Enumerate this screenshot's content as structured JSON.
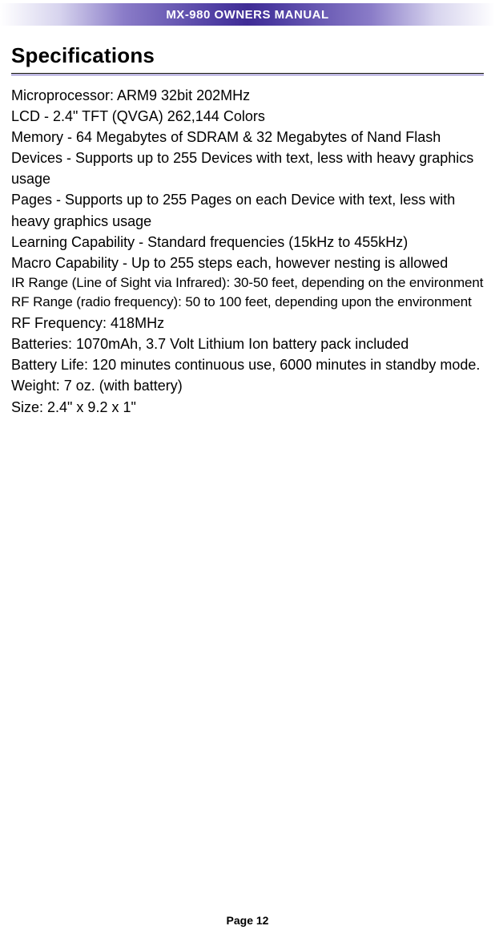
{
  "header": {
    "product": "MX-980",
    "tail": " OWNERS MANUAL"
  },
  "section_title": "Specifications",
  "specs": [
    {
      "text": "Microprocessor: ARM9 32bit 202MHz"
    },
    {
      "text": "LCD - 2.4\" TFT (QVGA) 262,144 Colors"
    },
    {
      "text": "Memory - 64 Megabytes of SDRAM & 32 Megabytes of Nand Flash"
    },
    {
      "text": "Devices - Supports up to 255 Devices with text, less with heavy graphics usage"
    },
    {
      "text": "Pages - Supports up to 255 Pages on each Device with text, less with heavy graphics usage"
    },
    {
      "text": "Learning Capability - Standard frequencies (15kHz to 455kHz)"
    },
    {
      "text": "Macro Capability - Up to 255 steps each, however nesting is allowed"
    },
    {
      "text": "IR Range (Line of Sight via Infrared): 30-50 feet, depending on the environment",
      "tight": true
    },
    {
      "text": "RF Range (radio frequency): 50 to 100 feet, depending upon the environment",
      "tight": true
    },
    {
      "text": "RF Frequency: 418MHz"
    },
    {
      "text": "Batteries: 1070mAh, 3.7 Volt Lithium Ion battery pack included"
    },
    {
      "text": "Battery Life: 120 minutes continuous use, 6000 minutes in standby mode."
    },
    {
      "text": "Weight: 7 oz. (with battery)"
    },
    {
      "text": "Size: 2.4\" x 9.2 x 1\""
    }
  ],
  "footer": "Page 12",
  "colors": {
    "header_mid": "#3f2c95",
    "rule_shadow": "#6f60bf",
    "text": "#000000",
    "bg": "#ffffff"
  }
}
